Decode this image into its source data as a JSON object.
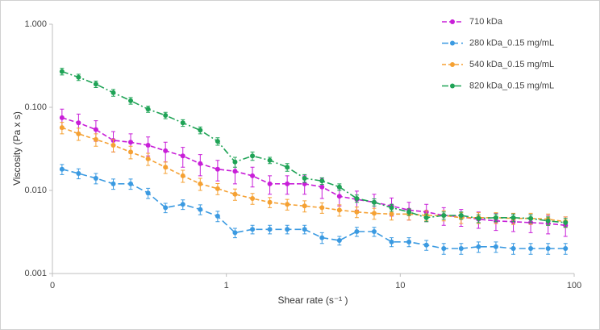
{
  "chart_data": {
    "type": "scatter",
    "x_label": "Shear rate (s⁻¹ )",
    "y_label": "Viscosity (Pa x s)",
    "log_x": true,
    "log_y": true,
    "grid": false,
    "legend_position": "top-right",
    "xlim": [
      0.1,
      100
    ],
    "xticks": [
      {
        "value": 0.1,
        "label": "0"
      },
      1,
      10,
      100
    ],
    "ylim": [
      0.001,
      1
    ],
    "yticks": [
      {
        "value": 0.001,
        "label": "0.001"
      },
      {
        "value": 0.01,
        "label": "0.010"
      },
      {
        "value": 0.1,
        "label": "0.100"
      },
      {
        "value": 1,
        "label": "1.000"
      }
    ],
    "x": [
      0.1135,
      0.1413,
      0.1778,
      0.2239,
      0.2818,
      0.3548,
      0.4467,
      0.5623,
      0.7079,
      0.8913,
      1.122,
      1.413,
      1.778,
      2.239,
      2.818,
      3.548,
      4.467,
      5.623,
      7.079,
      8.913,
      11.22,
      14.13,
      17.78,
      22.39,
      28.18,
      35.48,
      44.67,
      56.23,
      70.79,
      89.13
    ],
    "series": [
      {
        "name": "710 kDa",
        "color": "#c81ed8",
        "values": [
          0.075,
          0.065,
          0.054,
          0.04,
          0.038,
          0.035,
          0.03,
          0.026,
          0.021,
          0.018,
          0.017,
          0.015,
          0.012,
          0.012,
          0.012,
          0.011,
          0.0085,
          0.0078,
          0.0072,
          0.0065,
          0.0058,
          0.0055,
          0.005,
          0.0048,
          0.0045,
          0.0043,
          0.0042,
          0.0041,
          0.004,
          0.0038
        ],
        "errors": [
          0.02,
          0.018,
          0.015,
          0.011,
          0.01,
          0.009,
          0.008,
          0.007,
          0.006,
          0.005,
          0.005,
          0.004,
          0.003,
          0.003,
          0.003,
          0.003,
          0.002,
          0.002,
          0.0018,
          0.0016,
          0.0014,
          0.0013,
          0.0012,
          0.0011,
          0.001,
          0.001,
          0.001,
          0.001,
          0.001,
          0.001
        ]
      },
      {
        "name": "280 kDa_0.15 mg/mL",
        "color": "#3b9ae1",
        "values": [
          0.018,
          0.016,
          0.014,
          0.012,
          0.012,
          0.0093,
          0.0062,
          0.0068,
          0.0059,
          0.0049,
          0.0031,
          0.0034,
          0.0034,
          0.0034,
          0.0034,
          0.0027,
          0.0025,
          0.0032,
          0.0032,
          0.0024,
          0.0024,
          0.0022,
          0.002,
          0.002,
          0.0021,
          0.0021,
          0.002,
          0.002,
          0.002,
          0.002
        ],
        "errors": [
          0.0025,
          0.0022,
          0.002,
          0.0017,
          0.0017,
          0.0013,
          0.0008,
          0.0009,
          0.0008,
          0.0007,
          0.0004,
          0.0004,
          0.0004,
          0.0004,
          0.0004,
          0.0004,
          0.0003,
          0.0004,
          0.0004,
          0.0003,
          0.0003,
          0.0003,
          0.0003,
          0.0003,
          0.0003,
          0.0003,
          0.0003,
          0.0003,
          0.0003,
          0.0003
        ]
      },
      {
        "name": "540 kDa_0.15 mg/mL",
        "color": "#f5a133",
        "values": [
          0.057,
          0.048,
          0.041,
          0.035,
          0.029,
          0.024,
          0.019,
          0.015,
          0.012,
          0.0105,
          0.009,
          0.008,
          0.0072,
          0.0068,
          0.0065,
          0.0062,
          0.0058,
          0.0055,
          0.0053,
          0.0052,
          0.0052,
          0.005,
          0.005,
          0.0047,
          0.0047,
          0.0047,
          0.0046,
          0.0046,
          0.0045,
          0.0042
        ],
        "errors": [
          0.009,
          0.008,
          0.007,
          0.006,
          0.005,
          0.004,
          0.003,
          0.0025,
          0.002,
          0.0016,
          0.0014,
          0.0012,
          0.001,
          0.001,
          0.001,
          0.0009,
          0.0009,
          0.0008,
          0.0008,
          0.0008,
          0.0008,
          0.0007,
          0.0007,
          0.0007,
          0.0007,
          0.0007,
          0.0007,
          0.0007,
          0.0007,
          0.0006
        ]
      },
      {
        "name": "820 kDa_0.15 mg/mL",
        "color": "#1fa356",
        "values": [
          0.27,
          0.23,
          0.19,
          0.15,
          0.12,
          0.095,
          0.08,
          0.065,
          0.053,
          0.039,
          0.022,
          0.026,
          0.023,
          0.019,
          0.014,
          0.013,
          0.011,
          0.008,
          0.0072,
          0.0062,
          0.0055,
          0.0047,
          0.005,
          0.005,
          0.0046,
          0.0047,
          0.0047,
          0.0046,
          0.0043,
          0.0041
        ],
        "errors": [
          0.025,
          0.02,
          0.017,
          0.014,
          0.011,
          0.008,
          0.007,
          0.006,
          0.005,
          0.004,
          0.003,
          0.003,
          0.002,
          0.002,
          0.0015,
          0.0012,
          0.001,
          0.0008,
          0.0007,
          0.0006,
          0.0005,
          0.0005,
          0.0005,
          0.0005,
          0.0005,
          0.0005,
          0.0005,
          0.0005,
          0.0005,
          0.0005
        ]
      }
    ]
  }
}
